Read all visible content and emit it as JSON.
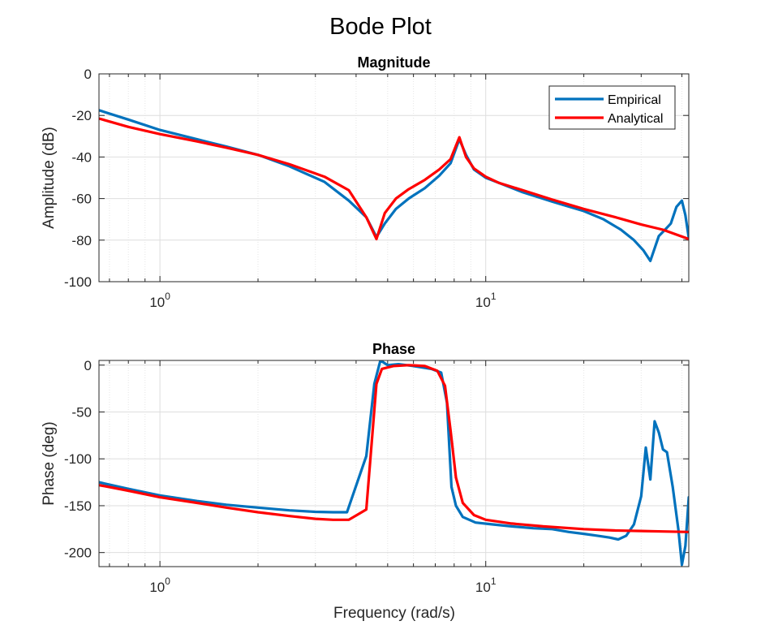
{
  "figure": {
    "title": "Bode Plot",
    "xlabel": "Frequency (rad/s)"
  },
  "colors": {
    "empirical": "#0072BD",
    "analytical": "#FF0000",
    "grid": "#dcdcdc",
    "axis": "#262626"
  },
  "chart_data": [
    {
      "type": "line",
      "title": "Magnitude",
      "xlabel": "",
      "ylabel": "Amplitude (dB)",
      "xscale": "log",
      "xlim": [
        0.65,
        42
      ],
      "ylim": [
        -100,
        0
      ],
      "yticks": [
        0,
        -20,
        -40,
        -60,
        -80,
        -100
      ],
      "xticks": [
        {
          "value": 1,
          "base": "10",
          "exp": "0"
        },
        {
          "value": 10,
          "base": "10",
          "exp": "1"
        }
      ],
      "grid": true,
      "legend": "top-right",
      "series": [
        {
          "name": "Empirical",
          "color": "#0072BD",
          "x": [
            0.65,
            0.8,
            1.0,
            1.3,
            1.6,
            2.0,
            2.5,
            3.2,
            3.8,
            4.3,
            4.62,
            4.9,
            5.3,
            5.8,
            6.5,
            7.2,
            7.8,
            8.3,
            8.7,
            9.2,
            10.0,
            11.0,
            13.0,
            16.0,
            20.0,
            23.0,
            26.0,
            28.5,
            30.5,
            32.0,
            34.0,
            35.5,
            37.0,
            38.5,
            40.0,
            41.0,
            42.0
          ],
          "y": [
            -17.5,
            -22,
            -27,
            -31.5,
            -35,
            -39,
            -44.5,
            -52,
            -61,
            -69,
            -78.5,
            -72,
            -65,
            -60,
            -55,
            -49,
            -43,
            -31.5,
            -39,
            -46,
            -50,
            -52.5,
            -57,
            -61.5,
            -66,
            -70,
            -75,
            -80,
            -85,
            -90,
            -78,
            -75,
            -72,
            -64,
            -61,
            -68,
            -79
          ]
        },
        {
          "name": "Analytical",
          "color": "#FF0000",
          "x": [
            0.65,
            0.8,
            1.0,
            1.3,
            1.6,
            2.0,
            2.5,
            3.2,
            3.8,
            4.3,
            4.62,
            4.9,
            5.3,
            5.8,
            6.5,
            7.2,
            7.8,
            8.3,
            8.7,
            9.2,
            10.0,
            11.0,
            13.0,
            16.0,
            20.0,
            25.0,
            30.0,
            35.0,
            42.0
          ],
          "y": [
            -21.5,
            -25.5,
            -29,
            -32.5,
            -35.5,
            -39,
            -43.5,
            -49.5,
            -56,
            -69,
            -79.5,
            -67,
            -60,
            -55.5,
            -51,
            -46,
            -41,
            -30.5,
            -40,
            -45.5,
            -49.5,
            -52.5,
            -56,
            -60.5,
            -65,
            -69,
            -72.5,
            -75,
            -79.5
          ]
        }
      ]
    },
    {
      "type": "line",
      "title": "Phase",
      "xlabel": "",
      "ylabel": "Phase (deg)",
      "xscale": "log",
      "xlim": [
        0.65,
        42
      ],
      "ylim": [
        -215,
        5
      ],
      "yticks": [
        0,
        -50,
        -100,
        -150,
        -200
      ],
      "xticks": [
        {
          "value": 1,
          "base": "10",
          "exp": "0"
        },
        {
          "value": 10,
          "base": "10",
          "exp": "1"
        }
      ],
      "grid": true,
      "series": [
        {
          "name": "Empirical",
          "color": "#0072BD",
          "x": [
            0.65,
            0.8,
            1.0,
            1.3,
            1.6,
            2.0,
            2.5,
            3.0,
            3.4,
            3.75,
            4.3,
            4.55,
            4.75,
            5.0,
            5.4,
            6.0,
            6.8,
            7.3,
            7.6,
            7.85,
            8.1,
            8.5,
            9.3,
            10.5,
            12.0,
            14.0,
            16.0,
            18.0,
            20.0,
            22.0,
            24.0,
            25.5,
            27.0,
            28.5,
            30.0,
            31.0,
            32.0,
            33.0,
            34.0,
            35.0,
            36.0,
            37.5,
            39.0,
            40.0,
            41.0,
            42.0
          ],
          "y": [
            -125,
            -132,
            -139,
            -145,
            -149,
            -152,
            -155,
            -156.5,
            -157,
            -157,
            -97,
            -20,
            5,
            0,
            1,
            -1,
            -4,
            -8,
            -40,
            -130,
            -150,
            -162,
            -168,
            -170,
            -172,
            -174,
            -175,
            -178,
            -180,
            -182,
            -184,
            -186,
            -182,
            -170,
            -140,
            -88,
            -122,
            -60,
            -72,
            -90,
            -93,
            -130,
            -175,
            -213,
            -193,
            -141
          ]
        },
        {
          "name": "Analytical",
          "color": "#FF0000",
          "x": [
            0.65,
            0.8,
            1.0,
            1.3,
            1.6,
            2.0,
            2.5,
            3.0,
            3.4,
            3.8,
            4.3,
            4.62,
            4.8,
            5.2,
            5.8,
            6.5,
            7.1,
            7.5,
            7.8,
            8.1,
            8.5,
            9.2,
            10.0,
            12.0,
            15.0,
            20.0,
            25.0,
            30.0,
            35.0,
            42.0
          ],
          "y": [
            -128,
            -134,
            -141,
            -147,
            -152,
            -157,
            -161,
            -164,
            -165,
            -165,
            -154,
            -20,
            -4,
            -1,
            0,
            -1,
            -6,
            -22,
            -70,
            -120,
            -147,
            -160,
            -165,
            -169,
            -172,
            -175,
            -176.5,
            -177,
            -177.5,
            -178
          ]
        }
      ]
    }
  ]
}
